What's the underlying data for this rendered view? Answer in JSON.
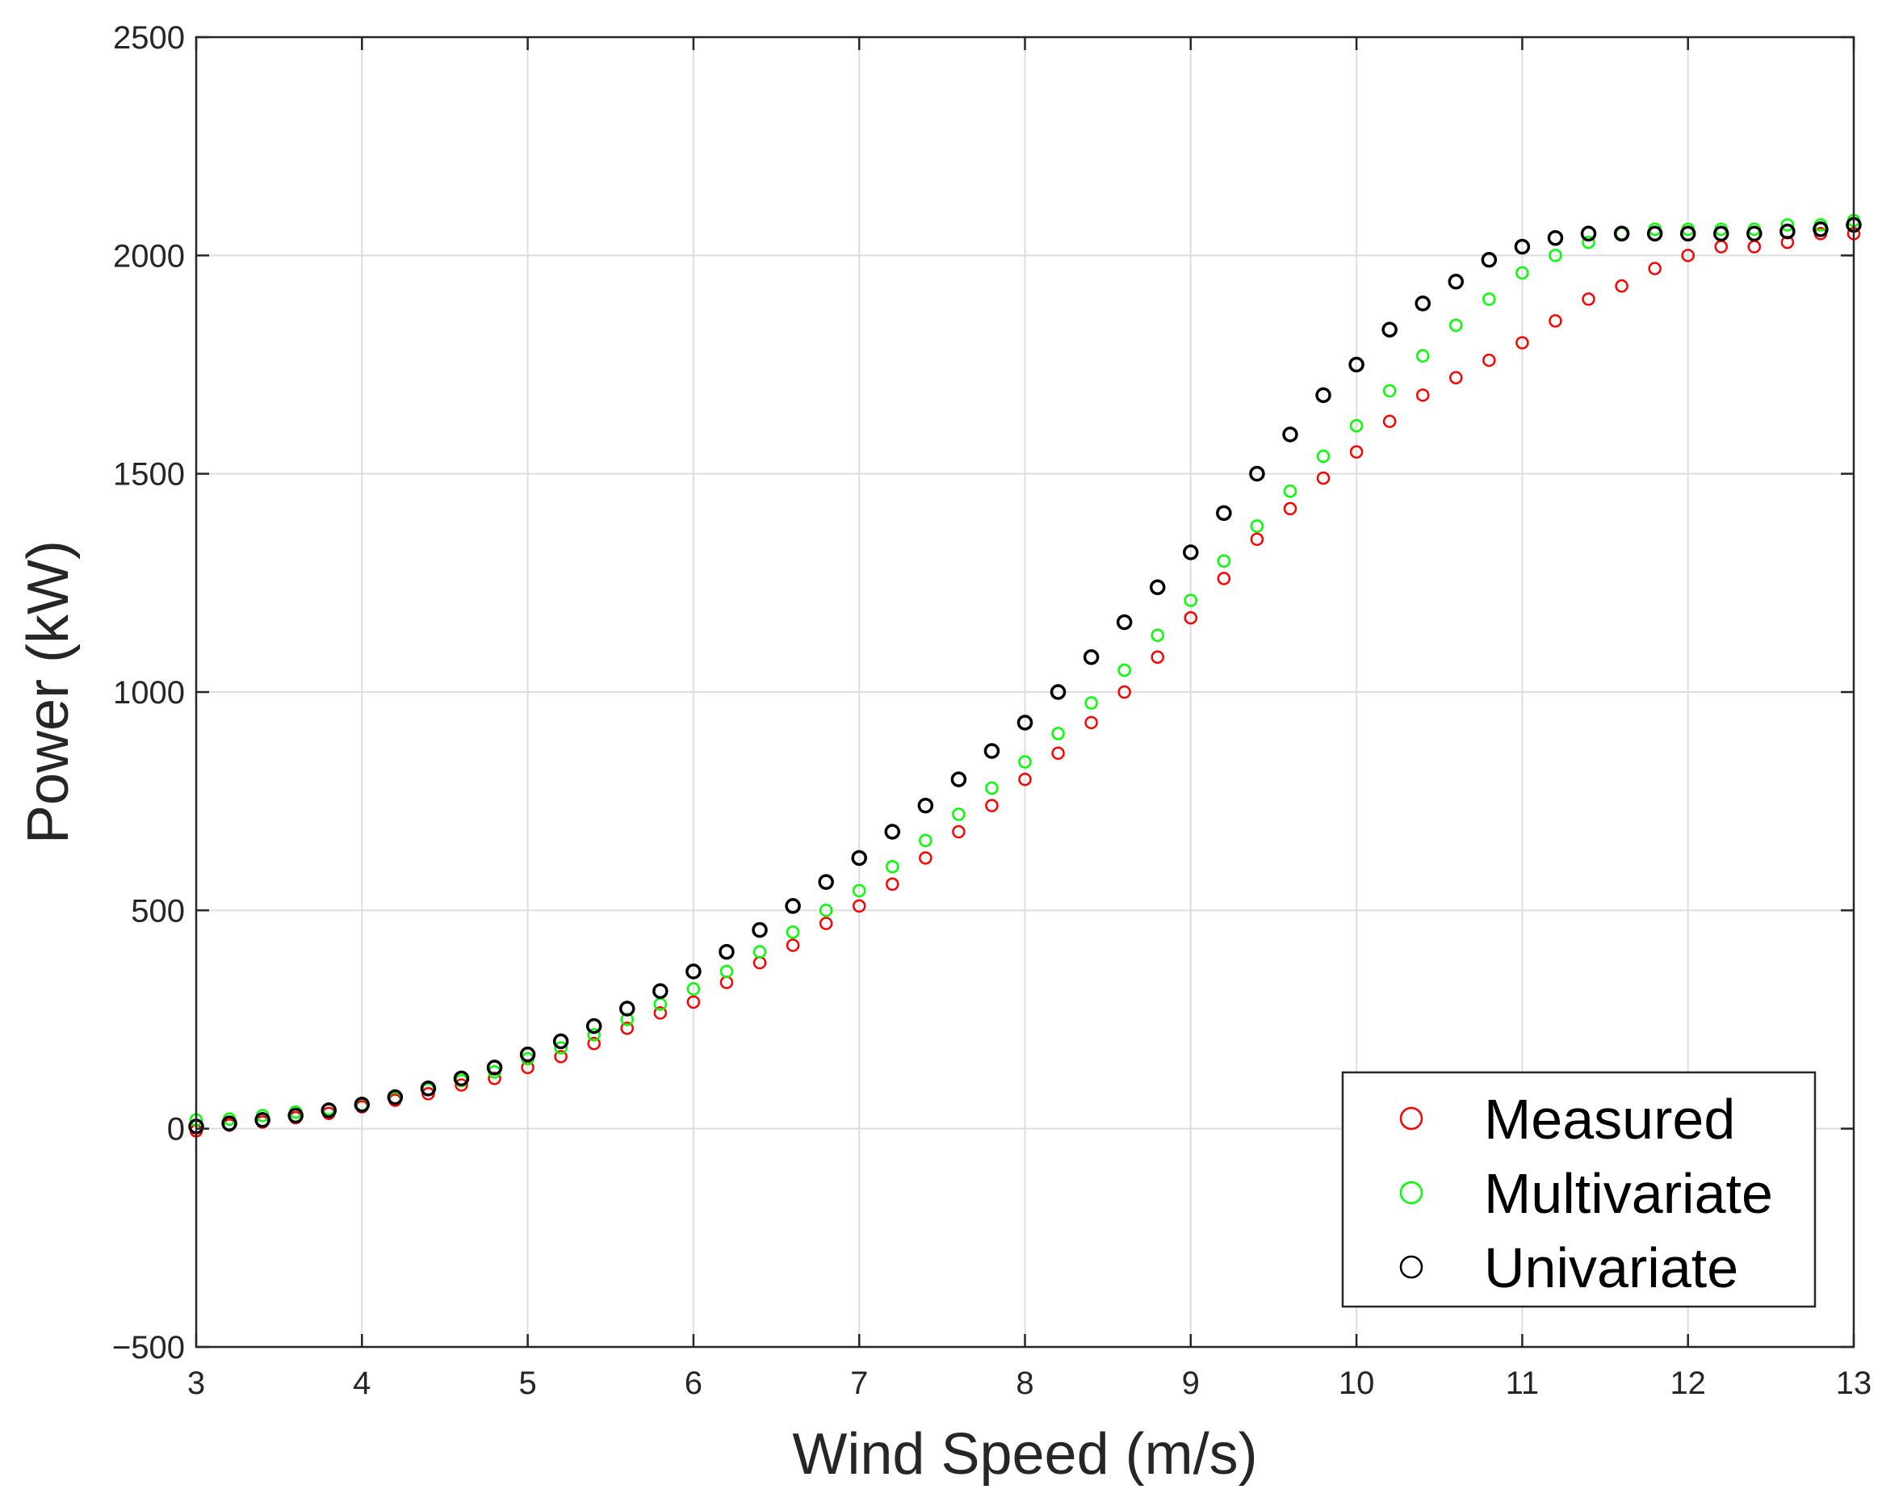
{
  "chart_data": {
    "type": "scatter",
    "title": "",
    "xlabel": "Wind Speed (m/s)",
    "ylabel": "Power (kW)",
    "xlim": [
      3,
      13
    ],
    "ylim": [
      -500,
      2500
    ],
    "xticks": [
      3,
      4,
      5,
      6,
      7,
      8,
      9,
      10,
      11,
      12,
      13
    ],
    "yticks": [
      -500,
      0,
      500,
      1000,
      1500,
      2000,
      2500
    ],
    "xtick_labels": [
      "3",
      "4",
      "5",
      "6",
      "7",
      "8",
      "9",
      "10",
      "11",
      "12",
      "13"
    ],
    "ytick_labels": [
      "−500",
      "0",
      "500",
      "1000",
      "1500",
      "2000",
      "2500"
    ],
    "grid": true,
    "legend_position": "bottom-right",
    "marker": "open-circle",
    "series": [
      {
        "name": "Measured",
        "color": "#ff0000",
        "x": [
          3.0,
          3.2,
          3.4,
          3.6,
          3.8,
          4.0,
          4.2,
          4.4,
          4.6,
          4.8,
          5.0,
          5.2,
          5.4,
          5.6,
          5.8,
          6.0,
          6.2,
          6.4,
          6.6,
          6.8,
          7.0,
          7.2,
          7.4,
          7.6,
          7.8,
          8.0,
          8.2,
          8.4,
          8.6,
          8.8,
          9.0,
          9.2,
          9.4,
          9.6,
          9.8,
          10.0,
          10.2,
          10.4,
          10.6,
          10.8,
          11.0,
          11.2,
          11.4,
          11.6,
          11.8,
          12.0,
          12.2,
          12.4,
          12.6,
          12.8,
          13.0
        ],
        "y": [
          -5,
          8,
          15,
          25,
          35,
          50,
          65,
          80,
          100,
          115,
          140,
          165,
          195,
          230,
          265,
          290,
          335,
          380,
          420,
          470,
          510,
          560,
          620,
          680,
          740,
          800,
          860,
          930,
          1000,
          1080,
          1170,
          1260,
          1350,
          1420,
          1490,
          1550,
          1620,
          1680,
          1720,
          1760,
          1800,
          1850,
          1900,
          1930,
          1970,
          2000,
          2020,
          2020,
          2030,
          2050,
          2050
        ]
      },
      {
        "name": "Multivariate",
        "color": "#00ff00",
        "x": [
          3.0,
          3.2,
          3.4,
          3.6,
          3.8,
          4.0,
          4.2,
          4.4,
          4.6,
          4.8,
          5.0,
          5.2,
          5.4,
          5.6,
          5.8,
          6.0,
          6.2,
          6.4,
          6.6,
          6.8,
          7.0,
          7.2,
          7.4,
          7.6,
          7.8,
          8.0,
          8.2,
          8.4,
          8.6,
          8.8,
          9.0,
          9.2,
          9.4,
          9.6,
          9.8,
          10.0,
          10.2,
          10.4,
          10.6,
          10.8,
          11.0,
          11.2,
          11.4,
          11.6,
          11.8,
          12.0,
          12.2,
          12.4,
          12.6,
          12.8,
          13.0
        ],
        "y": [
          20,
          22,
          30,
          38,
          45,
          55,
          70,
          90,
          110,
          130,
          160,
          185,
          215,
          250,
          285,
          320,
          360,
          405,
          450,
          500,
          545,
          600,
          660,
          720,
          780,
          840,
          905,
          975,
          1050,
          1130,
          1210,
          1300,
          1380,
          1460,
          1540,
          1610,
          1690,
          1770,
          1840,
          1900,
          1960,
          2000,
          2030,
          2050,
          2060,
          2060,
          2060,
          2060,
          2070,
          2070,
          2080
        ]
      },
      {
        "name": "Univariate",
        "color": "#000000",
        "x": [
          3.0,
          3.2,
          3.4,
          3.6,
          3.8,
          4.0,
          4.2,
          4.4,
          4.6,
          4.8,
          5.0,
          5.2,
          5.4,
          5.6,
          5.8,
          6.0,
          6.2,
          6.4,
          6.6,
          6.8,
          7.0,
          7.2,
          7.4,
          7.6,
          7.8,
          8.0,
          8.2,
          8.4,
          8.6,
          8.8,
          9.0,
          9.2,
          9.4,
          9.6,
          9.8,
          10.0,
          10.2,
          10.4,
          10.6,
          10.8,
          11.0,
          11.2,
          11.4,
          11.6,
          11.8,
          12.0,
          12.2,
          12.4,
          12.6,
          12.8,
          13.0
        ],
        "y": [
          5,
          12,
          20,
          30,
          42,
          55,
          72,
          92,
          115,
          140,
          170,
          200,
          235,
          275,
          315,
          360,
          405,
          455,
          510,
          565,
          620,
          680,
          740,
          800,
          865,
          930,
          1000,
          1080,
          1160,
          1240,
          1320,
          1410,
          1500,
          1590,
          1680,
          1750,
          1830,
          1890,
          1940,
          1990,
          2020,
          2040,
          2050,
          2050,
          2050,
          2050,
          2050,
          2050,
          2055,
          2060,
          2070
        ]
      }
    ]
  }
}
